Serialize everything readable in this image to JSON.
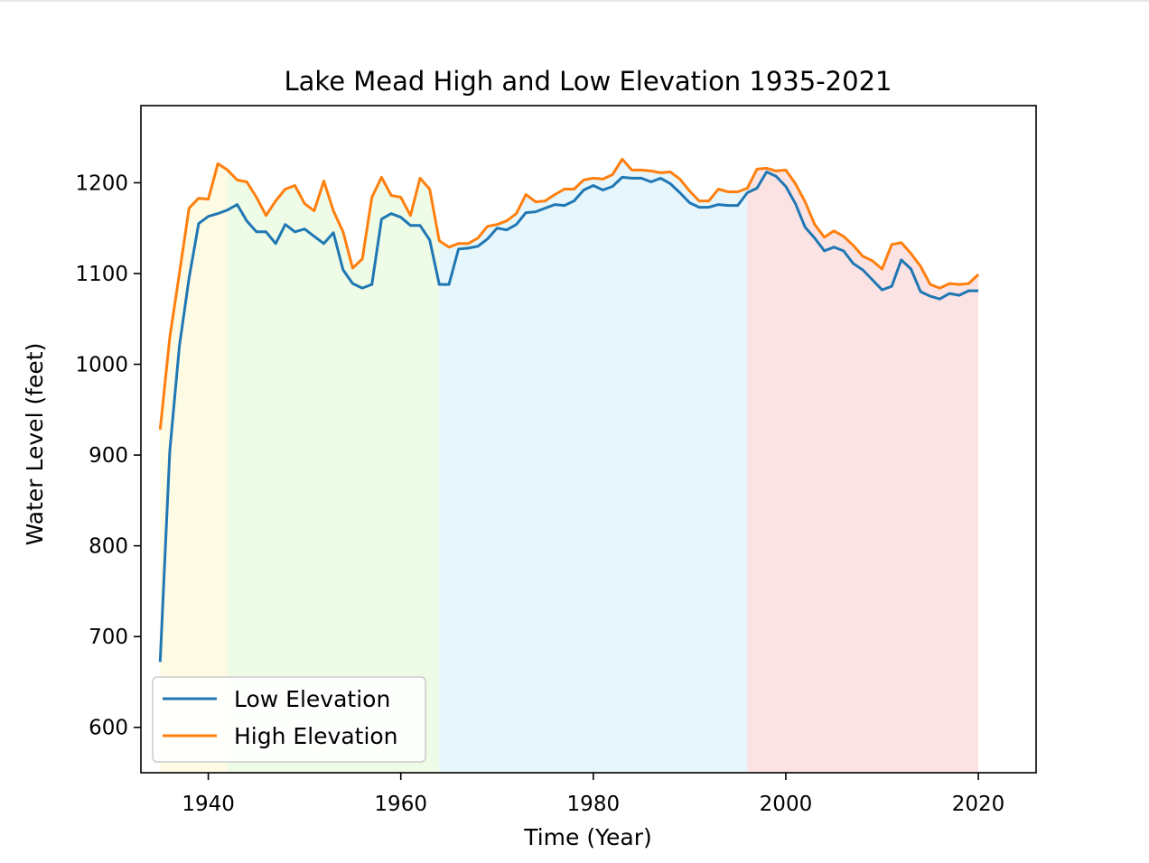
{
  "chart_data": {
    "type": "line",
    "title": "Lake Mead High and Low Elevation 1935-2021",
    "xlabel": "Time (Year)",
    "ylabel": "Water Level (feet)",
    "xlim": [
      1933,
      2026
    ],
    "ylim": [
      550,
      1285
    ],
    "xticks": [
      1940,
      1960,
      1980,
      2000,
      2020
    ],
    "yticks": [
      600,
      700,
      800,
      900,
      1000,
      1100,
      1200
    ],
    "grid": false,
    "legend_position": "lower-left",
    "x": [
      1935,
      1936,
      1937,
      1938,
      1939,
      1940,
      1941,
      1942,
      1943,
      1944,
      1945,
      1946,
      1947,
      1948,
      1949,
      1950,
      1951,
      1952,
      1953,
      1954,
      1955,
      1956,
      1957,
      1958,
      1959,
      1960,
      1961,
      1962,
      1963,
      1964,
      1965,
      1966,
      1967,
      1968,
      1969,
      1970,
      1971,
      1972,
      1973,
      1974,
      1975,
      1976,
      1977,
      1978,
      1979,
      1980,
      1981,
      1982,
      1983,
      1984,
      1985,
      1986,
      1987,
      1988,
      1989,
      1990,
      1991,
      1992,
      1993,
      1994,
      1995,
      1996,
      1997,
      1998,
      1999,
      2000,
      2001,
      2002,
      2003,
      2004,
      2005,
      2006,
      2007,
      2008,
      2009,
      2010,
      2011,
      2012,
      2013,
      2014,
      2015,
      2016,
      2017,
      2018,
      2019,
      2020
    ],
    "series": [
      {
        "name": "Low Elevation",
        "color": "#1f77b4",
        "values": [
          672,
          905,
          1020,
          1095,
          1155,
          1163,
          1166,
          1170,
          1176,
          1158,
          1146,
          1146,
          1133,
          1154,
          1146,
          1149,
          1141,
          1133,
          1145,
          1104,
          1089,
          1084,
          1088,
          1160,
          1166,
          1162,
          1153,
          1153,
          1137,
          1088,
          1088,
          1127,
          1128,
          1130,
          1138,
          1150,
          1148,
          1154,
          1167,
          1168,
          1172,
          1176,
          1175,
          1180,
          1192,
          1197,
          1192,
          1196,
          1206,
          1205,
          1205,
          1201,
          1205,
          1199,
          1189,
          1178,
          1173,
          1173,
          1176,
          1175,
          1175,
          1189,
          1194,
          1212,
          1207,
          1196,
          1177,
          1151,
          1139,
          1125,
          1129,
          1125,
          1111,
          1104,
          1093,
          1082,
          1086,
          1115,
          1105,
          1080,
          1075,
          1072,
          1078,
          1076,
          1081,
          1081
        ]
      },
      {
        "name": "High Elevation",
        "color": "#ff7f0e",
        "values": [
          928,
          1030,
          1100,
          1172,
          1183,
          1182,
          1221,
          1214,
          1203,
          1201,
          1184,
          1164,
          1180,
          1193,
          1197,
          1177,
          1169,
          1202,
          1169,
          1146,
          1106,
          1116,
          1184,
          1206,
          1186,
          1184,
          1164,
          1205,
          1193,
          1136,
          1129,
          1133,
          1133,
          1139,
          1152,
          1154,
          1158,
          1166,
          1187,
          1179,
          1180,
          1187,
          1193,
          1193,
          1203,
          1205,
          1204,
          1209,
          1226,
          1214,
          1214,
          1213,
          1211,
          1212,
          1204,
          1191,
          1180,
          1180,
          1193,
          1190,
          1190,
          1194,
          1215,
          1216,
          1213,
          1214,
          1199,
          1179,
          1154,
          1140,
          1147,
          1141,
          1131,
          1119,
          1114,
          1105,
          1132,
          1134,
          1122,
          1108,
          1088,
          1084,
          1089,
          1088,
          1089,
          1099
        ]
      }
    ],
    "background_bands": [
      {
        "x_start": 1935,
        "x_end": 1942,
        "color": "#fdfbe3"
      },
      {
        "x_start": 1942,
        "x_end": 1964,
        "color": "#eefbe6"
      },
      {
        "x_start": 1964,
        "x_end": 1996,
        "color": "#e6f6fb"
      },
      {
        "x_start": 1996,
        "x_end": 2020,
        "color": "#fbe3e3"
      }
    ]
  }
}
